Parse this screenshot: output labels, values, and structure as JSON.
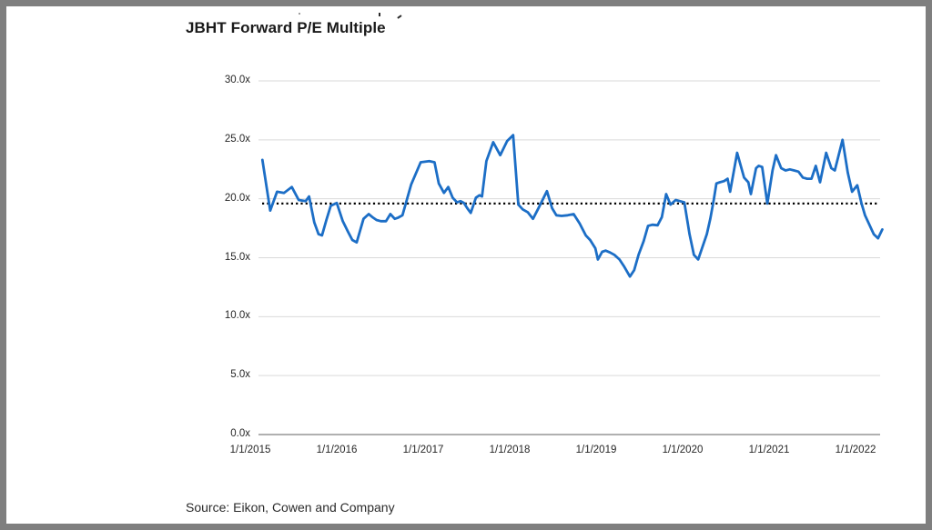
{
  "page": {
    "title": "JBHT Forward P/E Multiple",
    "source": "Source: Eikon, Cowen and Company"
  },
  "chart_data": {
    "type": "line",
    "title": "JBHT Forward P/E Multiple",
    "series_name": "JBHT forward P/E multiple",
    "xlabel": "",
    "ylabel": "",
    "ylim": [
      0,
      30
    ],
    "x_range": [
      "1/1/2015",
      "mid-2022"
    ],
    "grid": "horizontal-only",
    "legend": "none",
    "line_color": "#1c6ec6",
    "axis_color": "#808080",
    "gridline_color": "#d9d9d9",
    "y_ticks": [
      {
        "value": 0,
        "label": "0.0x"
      },
      {
        "value": 5,
        "label": "5.0x"
      },
      {
        "value": 10,
        "label": "10.0x"
      },
      {
        "value": 15,
        "label": "15.0x"
      },
      {
        "value": 20,
        "label": "20.0x"
      },
      {
        "value": 25,
        "label": "25.0x"
      },
      {
        "value": 30,
        "label": "30.0x"
      }
    ],
    "x_ticks": [
      {
        "year": 2015,
        "label": "1/1/2015"
      },
      {
        "year": 2016,
        "label": "1/1/2016"
      },
      {
        "year": 2017,
        "label": "1/1/2017"
      },
      {
        "year": 2018,
        "label": "1/1/2018"
      },
      {
        "year": 2019,
        "label": "1/1/2019"
      },
      {
        "year": 2020,
        "label": "1/1/2020"
      },
      {
        "year": 2021,
        "label": "1/1/2021"
      },
      {
        "year": 2022,
        "label": "1/1/2022"
      }
    ],
    "average_line": {
      "value": 19.6,
      "style": "dotted",
      "color": "#000000"
    },
    "points": [
      [
        2015.14,
        23.3
      ],
      [
        2015.23,
        19.0
      ],
      [
        2015.31,
        20.6
      ],
      [
        2015.39,
        20.5
      ],
      [
        2015.48,
        21.0
      ],
      [
        2015.56,
        19.9
      ],
      [
        2015.64,
        19.8
      ],
      [
        2015.68,
        20.2
      ],
      [
        2015.74,
        18.0
      ],
      [
        2015.79,
        17.0
      ],
      [
        2015.83,
        16.9
      ],
      [
        2015.88,
        18.2
      ],
      [
        2015.93,
        19.4
      ],
      [
        2016.0,
        19.65
      ],
      [
        2016.07,
        18.1
      ],
      [
        2016.13,
        17.2
      ],
      [
        2016.18,
        16.5
      ],
      [
        2016.23,
        16.3
      ],
      [
        2016.31,
        18.3
      ],
      [
        2016.37,
        18.7
      ],
      [
        2016.42,
        18.4
      ],
      [
        2016.46,
        18.2
      ],
      [
        2016.51,
        18.1
      ],
      [
        2016.57,
        18.1
      ],
      [
        2016.62,
        18.7
      ],
      [
        2016.67,
        18.3
      ],
      [
        2016.71,
        18.4
      ],
      [
        2016.76,
        18.6
      ],
      [
        2016.86,
        21.2
      ],
      [
        2016.97,
        23.1
      ],
      [
        2017.07,
        23.2
      ],
      [
        2017.13,
        23.1
      ],
      [
        2017.18,
        21.3
      ],
      [
        2017.24,
        20.5
      ],
      [
        2017.29,
        21.0
      ],
      [
        2017.34,
        20.1
      ],
      [
        2017.39,
        19.7
      ],
      [
        2017.43,
        19.8
      ],
      [
        2017.47,
        19.65
      ],
      [
        2017.51,
        19.2
      ],
      [
        2017.55,
        18.8
      ],
      [
        2017.61,
        20.1
      ],
      [
        2017.65,
        20.3
      ],
      [
        2017.68,
        20.2
      ],
      [
        2017.73,
        23.2
      ],
      [
        2017.81,
        24.8
      ],
      [
        2017.89,
        23.7
      ],
      [
        2017.97,
        24.9
      ],
      [
        2018.04,
        25.4
      ],
      [
        2018.1,
        19.5
      ],
      [
        2018.15,
        19.1
      ],
      [
        2018.21,
        18.85
      ],
      [
        2018.27,
        18.3
      ],
      [
        2018.34,
        19.3
      ],
      [
        2018.43,
        20.65
      ],
      [
        2018.49,
        19.2
      ],
      [
        2018.54,
        18.6
      ],
      [
        2018.6,
        18.55
      ],
      [
        2018.67,
        18.6
      ],
      [
        2018.74,
        18.7
      ],
      [
        2018.81,
        17.9
      ],
      [
        2018.88,
        16.9
      ],
      [
        2018.93,
        16.5
      ],
      [
        2018.99,
        15.8
      ],
      [
        2019.02,
        14.85
      ],
      [
        2019.07,
        15.5
      ],
      [
        2019.11,
        15.6
      ],
      [
        2019.16,
        15.45
      ],
      [
        2019.21,
        15.25
      ],
      [
        2019.27,
        14.85
      ],
      [
        2019.32,
        14.3
      ],
      [
        2019.39,
        13.4
      ],
      [
        2019.44,
        13.95
      ],
      [
        2019.49,
        15.25
      ],
      [
        2019.55,
        16.4
      ],
      [
        2019.6,
        17.7
      ],
      [
        2019.65,
        17.8
      ],
      [
        2019.71,
        17.75
      ],
      [
        2019.76,
        18.45
      ],
      [
        2019.81,
        20.4
      ],
      [
        2019.86,
        19.5
      ],
      [
        2019.92,
        19.9
      ],
      [
        2019.97,
        19.8
      ],
      [
        2020.02,
        19.7
      ],
      [
        2020.08,
        17.0
      ],
      [
        2020.13,
        15.25
      ],
      [
        2020.18,
        14.85
      ],
      [
        2020.28,
        17.0
      ],
      [
        2020.32,
        18.3
      ],
      [
        2020.36,
        19.9
      ],
      [
        2020.39,
        21.3
      ],
      [
        2020.43,
        21.4
      ],
      [
        2020.48,
        21.5
      ],
      [
        2020.52,
        21.7
      ],
      [
        2020.55,
        20.6
      ],
      [
        2020.63,
        23.9
      ],
      [
        2020.71,
        21.8
      ],
      [
        2020.76,
        21.4
      ],
      [
        2020.79,
        20.4
      ],
      [
        2020.85,
        22.6
      ],
      [
        2020.88,
        22.8
      ],
      [
        2020.92,
        22.7
      ],
      [
        2020.98,
        19.6
      ],
      [
        2021.04,
        22.4
      ],
      [
        2021.08,
        23.7
      ],
      [
        2021.14,
        22.6
      ],
      [
        2021.19,
        22.4
      ],
      [
        2021.24,
        22.5
      ],
      [
        2021.29,
        22.4
      ],
      [
        2021.34,
        22.3
      ],
      [
        2021.39,
        21.8
      ],
      [
        2021.44,
        21.7
      ],
      [
        2021.49,
        21.7
      ],
      [
        2021.54,
        22.8
      ],
      [
        2021.59,
        21.4
      ],
      [
        2021.66,
        23.9
      ],
      [
        2021.72,
        22.6
      ],
      [
        2021.76,
        22.4
      ],
      [
        2021.85,
        25.0
      ],
      [
        2021.91,
        22.2
      ],
      [
        2021.96,
        20.6
      ],
      [
        2022.02,
        21.15
      ],
      [
        2022.07,
        19.6
      ],
      [
        2022.11,
        18.6
      ],
      [
        2022.16,
        17.8
      ],
      [
        2022.21,
        17.0
      ],
      [
        2022.26,
        16.65
      ],
      [
        2022.31,
        17.4
      ]
    ]
  }
}
